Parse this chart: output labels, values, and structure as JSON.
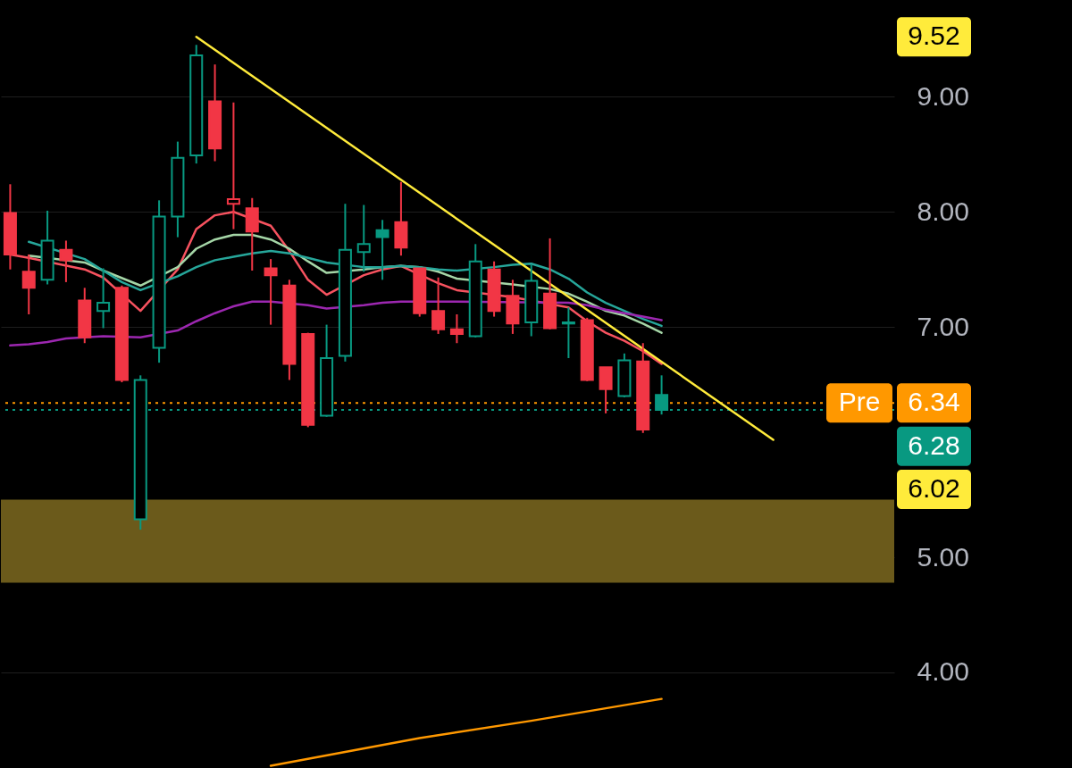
{
  "chart_data": {
    "type": "candlestick",
    "categories": [
      null,
      null,
      null,
      null,
      null,
      null,
      null,
      null,
      null,
      null,
      null,
      null,
      null,
      null,
      null,
      null,
      null,
      null,
      null,
      null,
      null,
      null,
      null,
      null,
      null,
      null,
      null,
      null,
      null,
      null,
      null,
      null,
      null,
      null,
      null,
      null,
      null,
      null,
      null,
      null,
      null,
      null,
      null,
      null,
      null,
      null,
      null,
      null
    ],
    "ohlc": [
      [
        7.99,
        8.24,
        7.5,
        7.63
      ],
      [
        7.48,
        7.63,
        7.11,
        7.34
      ],
      [
        7.41,
        8.01,
        7.37,
        7.75
      ],
      [
        7.67,
        7.75,
        7.39,
        7.58
      ],
      [
        7.23,
        7.34,
        6.86,
        6.91
      ],
      [
        7.14,
        7.51,
        6.99,
        7.21
      ],
      [
        7.34,
        7.36,
        6.52,
        6.54
      ],
      [
        5.33,
        6.58,
        5.24,
        6.54
      ],
      [
        6.82,
        8.1,
        6.69,
        7.96
      ],
      [
        7.96,
        8.61,
        7.78,
        8.47
      ],
      [
        8.49,
        9.45,
        8.42,
        9.36
      ],
      [
        8.96,
        9.28,
        8.44,
        8.55
      ],
      [
        8.07,
        8.95,
        7.85,
        8.11
      ],
      [
        8.03,
        8.12,
        7.49,
        7.83
      ],
      [
        7.51,
        7.59,
        7.02,
        7.45
      ],
      [
        7.36,
        7.41,
        6.54,
        6.68
      ],
      [
        6.94,
        6.95,
        6.13,
        6.15
      ],
      [
        6.23,
        7.02,
        6.22,
        6.73
      ],
      [
        6.75,
        8.07,
        6.7,
        7.67
      ],
      [
        7.65,
        8.06,
        7.48,
        7.72
      ],
      [
        7.84,
        7.93,
        7.41,
        7.78
      ],
      [
        7.91,
        8.26,
        7.62,
        7.69
      ],
      [
        7.51,
        7.51,
        7.09,
        7.12
      ],
      [
        7.14,
        7.43,
        6.94,
        6.98
      ],
      [
        6.98,
        7.11,
        6.86,
        6.94
      ],
      [
        6.92,
        7.72,
        6.91,
        7.57
      ],
      [
        7.5,
        7.57,
        7.09,
        7.14
      ],
      [
        7.27,
        7.41,
        6.94,
        7.03
      ],
      [
        7.04,
        7.54,
        6.92,
        7.4
      ],
      [
        7.29,
        7.77,
        6.98,
        6.99
      ],
      [
        7.03,
        7.17,
        6.73,
        7.04
      ],
      [
        7.06,
        7.08,
        6.53,
        6.54
      ],
      [
        6.65,
        6.65,
        6.25,
        6.46
      ],
      [
        6.4,
        6.77,
        6.39,
        6.71
      ],
      [
        6.7,
        6.86,
        6.08,
        6.11
      ],
      [
        6.41,
        6.58,
        6.24,
        6.28
      ],
      null,
      null,
      null,
      null,
      null,
      null,
      null,
      null,
      null,
      null,
      null,
      null
    ],
    "colors": [
      "#f23645",
      "#f23645",
      "#089981",
      "#f23645",
      "#f23645",
      "#089981",
      "#f23645",
      "#089981",
      "#089981",
      "#089981",
      "#089981",
      "#f23645",
      "#f23645",
      "#f23645",
      "#f23645",
      "#f23645",
      "#f23645",
      "#089981",
      "#089981",
      "#089981",
      "#089981",
      "#f23645",
      "#f23645",
      "#f23645",
      "#f23645",
      "#089981",
      "#f23645",
      "#f23645",
      "#089981",
      "#f23645",
      "#089981",
      "#f23645",
      "#f23645",
      "#089981",
      "#f23645",
      "#089981",
      null,
      null,
      null,
      null,
      null,
      null,
      null,
      null,
      null,
      null,
      null,
      null
    ],
    "series": [
      {
        "type": "line",
        "color": "#f7525f",
        "values": [
          7.63,
          7.6,
          null,
          null,
          7.5,
          7.43,
          null,
          7.14,
          null,
          7.5,
          7.85,
          7.97,
          8.0,
          null,
          7.88,
          7.66,
          7.41,
          7.28,
          null,
          7.45,
          7.5,
          7.53,
          null,
          7.38,
          7.32,
          null,
          null,
          7.26,
          null,
          null,
          7.17,
          7.05,
          6.95,
          6.88,
          6.79,
          6.68,
          null,
          null,
          null,
          null,
          null,
          null,
          null,
          null,
          null,
          null,
          null,
          null
        ]
      },
      {
        "type": "line",
        "color": "#a5d6a7",
        "values": [
          null,
          7.62,
          null,
          null,
          7.56,
          7.49,
          null,
          7.36,
          null,
          7.52,
          7.68,
          7.76,
          7.8,
          7.8,
          7.76,
          7.68,
          7.57,
          7.47,
          null,
          7.5,
          7.52,
          7.53,
          7.52,
          7.48,
          7.42,
          null,
          null,
          7.37,
          null,
          7.33,
          7.29,
          7.22,
          7.14,
          7.1,
          7.03,
          6.95,
          null,
          null,
          null,
          null,
          null,
          null,
          null,
          null,
          null,
          null,
          null,
          null
        ]
      },
      {
        "type": "line",
        "color": "#26a69a",
        "values": [
          null,
          7.74,
          null,
          null,
          7.59,
          7.49,
          7.39,
          7.32,
          null,
          7.44,
          7.52,
          7.58,
          7.61,
          7.64,
          7.66,
          7.64,
          7.6,
          7.56,
          null,
          7.52,
          7.52,
          7.53,
          7.52,
          7.5,
          7.49,
          null,
          7.52,
          7.54,
          7.55,
          7.5,
          7.42,
          7.3,
          7.21,
          7.14,
          7.07,
          7.01,
          null,
          null,
          null,
          null,
          null,
          null,
          null,
          null,
          null,
          null,
          null,
          null
        ]
      },
      {
        "type": "line",
        "color": "#9c27b0",
        "values": [
          6.84,
          6.85,
          6.87,
          6.9,
          6.91,
          6.92,
          null,
          6.91,
          null,
          6.97,
          7.05,
          7.12,
          7.18,
          7.22,
          7.22,
          null,
          7.19,
          7.16,
          null,
          7.19,
          7.21,
          7.22,
          null,
          7.22,
          7.22,
          null,
          null,
          null,
          null,
          null,
          7.21,
          7.19,
          7.15,
          7.12,
          7.09,
          7.06,
          null,
          null,
          null,
          null,
          null,
          null,
          null,
          null,
          null,
          null,
          null,
          null
        ]
      },
      {
        "type": "line",
        "color": "#ff9800",
        "values": [
          null,
          null,
          null,
          null,
          null,
          null,
          null,
          null,
          null,
          null,
          null,
          null,
          null,
          null,
          3.19,
          null,
          null,
          null,
          null,
          null,
          null,
          null,
          3.43,
          null,
          null,
          null,
          null,
          null,
          3.58,
          null,
          null,
          null,
          null,
          null,
          null,
          3.77,
          null,
          null,
          null,
          null,
          null,
          null,
          null,
          null,
          null,
          null,
          null,
          null
        ]
      },
      {
        "type": "line",
        "color": "#ffeb3b",
        "values": [
          null,
          null,
          null,
          null,
          null,
          null,
          null,
          null,
          null,
          null,
          9.52,
          null,
          null,
          null,
          null,
          null,
          null,
          null,
          null,
          null,
          null,
          null,
          null,
          null,
          null,
          null,
          null,
          null,
          null,
          null,
          null,
          null,
          null,
          null,
          null,
          null,
          null,
          null,
          null,
          null,
          null,
          6.02,
          null,
          null,
          null,
          null,
          null,
          null
        ]
      }
    ],
    "ylim": [
      3.17,
      9.84
    ],
    "yticks": [
      {
        "value": 4,
        "label": "4.00"
      },
      {
        "value": 5,
        "label": "5.00"
      },
      {
        "value": 7,
        "label": "7.00"
      },
      {
        "value": 8,
        "label": "8.00"
      },
      {
        "value": 9,
        "label": "9.00"
      }
    ],
    "tick_labels": "y",
    "grid": "y",
    "ref_lines": [
      {
        "axis": "y",
        "value": 6.34,
        "label": "6.34",
        "color": "#ff9800",
        "line_style": "dotted"
      },
      {
        "axis": "y",
        "value": 6.28,
        "label": "6.28",
        "color": "#089981",
        "line_style": "dotted"
      }
    ],
    "bands": [
      {
        "axis": "y",
        "from": 4.78,
        "to": 5.5,
        "color": "#6b5a1b"
      }
    ],
    "annotations": [
      {
        "text": "Pre",
        "y": 6.34
      },
      "9.52",
      "6.02"
    ]
  }
}
